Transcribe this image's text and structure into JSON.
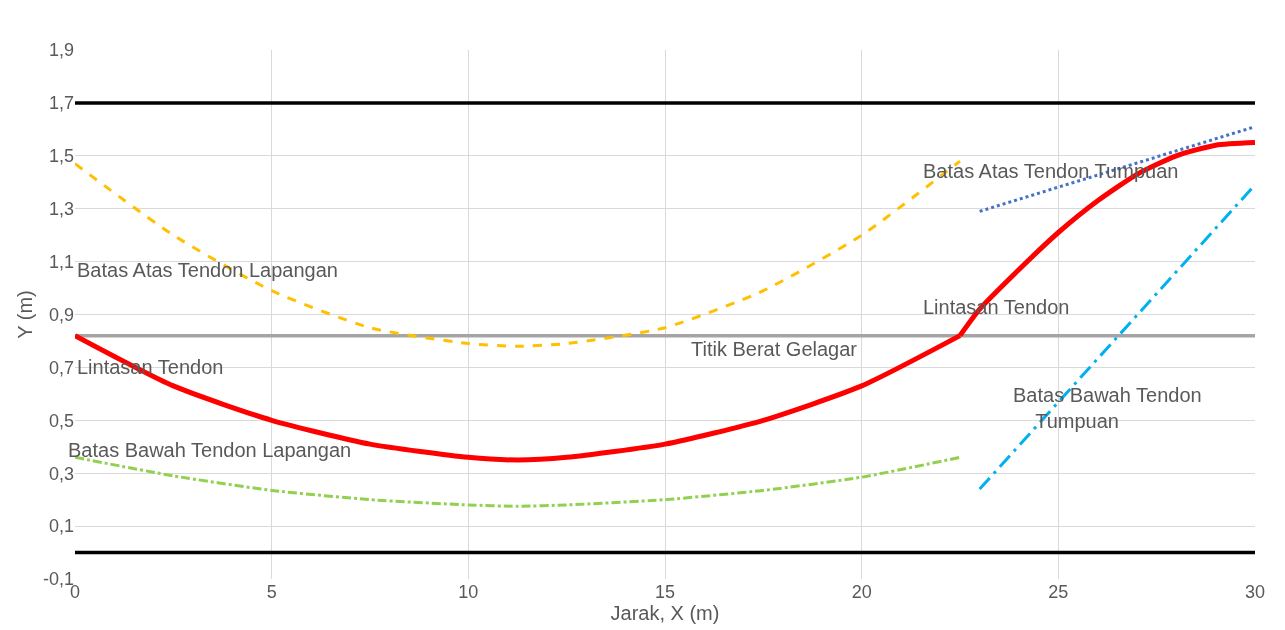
{
  "chart_data": {
    "type": "line",
    "xlabel": "Jarak, X (m)",
    "ylabel": "Y (m)",
    "xlim": [
      0,
      30
    ],
    "xticks": [
      0,
      5,
      10,
      15,
      20,
      25,
      30
    ],
    "ylim": [
      -0.1,
      1.9
    ],
    "yticks": [
      {
        "value": -0.1,
        "label": "-0,1"
      },
      {
        "value": 0.1,
        "label": "0,1"
      },
      {
        "value": 0.3,
        "label": "0,3"
      },
      {
        "value": 0.5,
        "label": "0,5"
      },
      {
        "value": 0.7,
        "label": "0,7"
      },
      {
        "value": 0.9,
        "label": "0,9"
      },
      {
        "value": 1.1,
        "label": "1,1"
      },
      {
        "value": 1.3,
        "label": "1,3"
      },
      {
        "value": 1.5,
        "label": "1,5"
      },
      {
        "value": 1.7,
        "label": "1,7"
      },
      {
        "value": 1.9,
        "label": "1,9"
      }
    ],
    "grid": true,
    "legend": false,
    "marker": "none",
    "ref_lines": [
      {
        "axis": "y",
        "value": 1.7,
        "color": "#000000",
        "line_style": "solid"
      },
      {
        "axis": "y",
        "value": 0.0,
        "color": "#000000",
        "line_style": "solid"
      },
      {
        "axis": "y",
        "value": 0.82,
        "color": "#a5a5a5",
        "line_style": "solid",
        "label": "Titik Berat Gelagar"
      }
    ],
    "series": [
      {
        "name": "Batas Atas Tendon Lapangan",
        "color": "#ffc000",
        "line_style": "dashed",
        "x": [
          0,
          2.5,
          5,
          7.5,
          10,
          11.25,
          12.5,
          15,
          17.5,
          20,
          22.5
        ],
        "values": [
          1.47,
          1.2,
          0.99,
          0.85,
          0.79,
          0.78,
          0.79,
          0.85,
          0.99,
          1.2,
          1.48
        ]
      },
      {
        "name": "Batas Bawah Tendon Lapangan",
        "color": "#92d050",
        "line_style": "dashdot",
        "x": [
          0,
          2.5,
          5,
          7.5,
          10,
          11.25,
          12.5,
          15,
          17.5,
          20,
          22.5
        ],
        "values": [
          0.36,
          0.29,
          0.235,
          0.2,
          0.18,
          0.175,
          0.18,
          0.2,
          0.235,
          0.285,
          0.36
        ]
      },
      {
        "name": "Lintasan Tendon",
        "color": "#ff0000",
        "line_style": "solid",
        "x": [
          0,
          2.5,
          5,
          7.5,
          10,
          11.25,
          12.5,
          15,
          17.5,
          20,
          22.5
        ],
        "values": [
          0.82,
          0.63,
          0.5,
          0.41,
          0.36,
          0.35,
          0.36,
          0.41,
          0.5,
          0.63,
          0.82
        ]
      },
      {
        "name": "Lintasan Tendon",
        "color": "#ff0000",
        "line_style": "solid",
        "x": [
          22.5,
          23,
          24,
          25,
          26,
          27,
          28,
          29,
          30
        ],
        "values": [
          0.82,
          0.92,
          1.07,
          1.21,
          1.33,
          1.43,
          1.5,
          1.54,
          1.55
        ]
      },
      {
        "name": "Batas Atas Tendon Tumpuan",
        "color": "#4472c4",
        "line_style": "dotted",
        "x": [
          23,
          30
        ],
        "values": [
          1.29,
          1.61
        ]
      },
      {
        "name": "Batas Bawah Tendon\n    Tumpuan",
        "color": "#00b0f0",
        "line_style": "longdashdot",
        "x": [
          23,
          30
        ],
        "values": [
          0.24,
          1.39
        ]
      }
    ]
  }
}
